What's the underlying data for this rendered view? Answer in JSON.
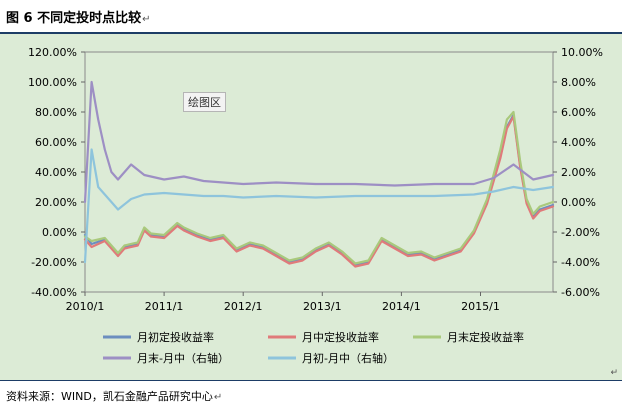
{
  "figure": {
    "title": "图 6 不同定投时点比较",
    "source": "资料来源：WIND，凯石金融产品研究中心",
    "plot_area_tag": "绘图区",
    "paragraph_mark": "↵"
  },
  "colors": {
    "bg": "#dcebd6",
    "early": "#6c8ebf",
    "mid": "#e07a7a",
    "late": "#a9c97c",
    "endMinusMid": "#9d8fc4",
    "startMinusMid": "#8ec4dc"
  },
  "chart_data": {
    "type": "line",
    "title": "",
    "xlabel": "",
    "ylabel": "",
    "x_ticks": [
      "2010/1",
      "2011/1",
      "2012/1",
      "2013/1",
      "2014/1",
      "2015/1"
    ],
    "left_axis": {
      "ylim": [
        -40,
        120
      ],
      "ticks": [
        "120.00%",
        "100.00%",
        "80.00%",
        "60.00%",
        "40.00%",
        "20.00%",
        "0.00%",
        "-20.00%",
        "-40.00%"
      ]
    },
    "right_axis": {
      "ylim": [
        -6,
        10
      ],
      "ticks": [
        "10.00%",
        "8.00%",
        "6.00%",
        "4.00%",
        "2.00%",
        "0.00%",
        "-2.00%",
        "-4.00%",
        "-6.00%"
      ]
    },
    "legend_position": "bottom",
    "legend": [
      "月初定投收益率",
      "月中定投收益率",
      "月末定投收益率",
      "月末-月中（右轴）",
      "月初-月中（右轴）"
    ],
    "x_range": [
      "2010-01",
      "2015-12"
    ],
    "series": [
      {
        "name": "月初定投收益率",
        "axis": "left",
        "color_key": "early",
        "points": [
          [
            "2010-01",
            -2
          ],
          [
            "2010-02",
            -8
          ],
          [
            "2010-04",
            -5
          ],
          [
            "2010-06",
            -15
          ],
          [
            "2010-07",
            -10
          ],
          [
            "2010-09",
            -8
          ],
          [
            "2010-10",
            2
          ],
          [
            "2010-11",
            -2
          ],
          [
            "2011-01",
            -3
          ],
          [
            "2011-03",
            5
          ],
          [
            "2011-04",
            2
          ],
          [
            "2011-06",
            -2
          ],
          [
            "2011-08",
            -5
          ],
          [
            "2011-10",
            -3
          ],
          [
            "2011-12",
            -12
          ],
          [
            "2012-02",
            -8
          ],
          [
            "2012-04",
            -10
          ],
          [
            "2012-06",
            -15
          ],
          [
            "2012-08",
            -20
          ],
          [
            "2012-10",
            -18
          ],
          [
            "2012-12",
            -12
          ],
          [
            "2013-02",
            -8
          ],
          [
            "2013-04",
            -14
          ],
          [
            "2013-06",
            -22
          ],
          [
            "2013-08",
            -20
          ],
          [
            "2013-10",
            -5
          ],
          [
            "2013-12",
            -10
          ],
          [
            "2014-02",
            -15
          ],
          [
            "2014-04",
            -14
          ],
          [
            "2014-06",
            -18
          ],
          [
            "2014-08",
            -15
          ],
          [
            "2014-10",
            -12
          ],
          [
            "2014-12",
            0
          ],
          [
            "2015-02",
            20
          ],
          [
            "2015-04",
            50
          ],
          [
            "2015-05",
            70
          ],
          [
            "2015-06",
            78
          ],
          [
            "2015-07",
            45
          ],
          [
            "2015-08",
            20
          ],
          [
            "2015-09",
            10
          ],
          [
            "2015-10",
            15
          ],
          [
            "2015-12",
            18
          ]
        ]
      },
      {
        "name": "月中定投收益率",
        "axis": "left",
        "color_key": "mid",
        "points": [
          [
            "2010-01",
            -5
          ],
          [
            "2010-02",
            -10
          ],
          [
            "2010-04",
            -6
          ],
          [
            "2010-06",
            -16
          ],
          [
            "2010-07",
            -11
          ],
          [
            "2010-09",
            -9
          ],
          [
            "2010-10",
            1
          ],
          [
            "2010-11",
            -3
          ],
          [
            "2011-01",
            -4
          ],
          [
            "2011-03",
            4
          ],
          [
            "2011-04",
            1
          ],
          [
            "2011-06",
            -3
          ],
          [
            "2011-08",
            -6
          ],
          [
            "2011-10",
            -4
          ],
          [
            "2011-12",
            -13
          ],
          [
            "2012-02",
            -9
          ],
          [
            "2012-04",
            -11
          ],
          [
            "2012-06",
            -16
          ],
          [
            "2012-08",
            -21
          ],
          [
            "2012-10",
            -19
          ],
          [
            "2012-12",
            -13
          ],
          [
            "2013-02",
            -9
          ],
          [
            "2013-04",
            -15
          ],
          [
            "2013-06",
            -23
          ],
          [
            "2013-08",
            -21
          ],
          [
            "2013-10",
            -6
          ],
          [
            "2013-12",
            -11
          ],
          [
            "2014-02",
            -16
          ],
          [
            "2014-04",
            -15
          ],
          [
            "2014-06",
            -19
          ],
          [
            "2014-08",
            -16
          ],
          [
            "2014-10",
            -13
          ],
          [
            "2014-12",
            -1
          ],
          [
            "2015-02",
            19
          ],
          [
            "2015-04",
            49
          ],
          [
            "2015-05",
            69
          ],
          [
            "2015-06",
            77
          ],
          [
            "2015-07",
            44
          ],
          [
            "2015-08",
            19
          ],
          [
            "2015-09",
            9
          ],
          [
            "2015-10",
            14
          ],
          [
            "2015-12",
            17
          ]
        ]
      },
      {
        "name": "月末定投收益率",
        "axis": "left",
        "color_key": "late",
        "points": [
          [
            "2010-01",
            -3
          ],
          [
            "2010-02",
            -6
          ],
          [
            "2010-04",
            -4
          ],
          [
            "2010-06",
            -14
          ],
          [
            "2010-07",
            -9
          ],
          [
            "2010-09",
            -7
          ],
          [
            "2010-10",
            3
          ],
          [
            "2010-11",
            -1
          ],
          [
            "2011-01",
            -2
          ],
          [
            "2011-03",
            6
          ],
          [
            "2011-04",
            3
          ],
          [
            "2011-06",
            -1
          ],
          [
            "2011-08",
            -4
          ],
          [
            "2011-10",
            -2
          ],
          [
            "2011-12",
            -11
          ],
          [
            "2012-02",
            -7
          ],
          [
            "2012-04",
            -9
          ],
          [
            "2012-06",
            -14
          ],
          [
            "2012-08",
            -19
          ],
          [
            "2012-10",
            -17
          ],
          [
            "2012-12",
            -11
          ],
          [
            "2013-02",
            -7
          ],
          [
            "2013-04",
            -13
          ],
          [
            "2013-06",
            -21
          ],
          [
            "2013-08",
            -19
          ],
          [
            "2013-10",
            -4
          ],
          [
            "2013-12",
            -9
          ],
          [
            "2014-02",
            -14
          ],
          [
            "2014-04",
            -13
          ],
          [
            "2014-06",
            -17
          ],
          [
            "2014-08",
            -14
          ],
          [
            "2014-10",
            -11
          ],
          [
            "2014-12",
            1
          ],
          [
            "2015-02",
            22
          ],
          [
            "2015-04",
            55
          ],
          [
            "2015-05",
            75
          ],
          [
            "2015-06",
            80
          ],
          [
            "2015-07",
            48
          ],
          [
            "2015-08",
            22
          ],
          [
            "2015-09",
            12
          ],
          [
            "2015-10",
            17
          ],
          [
            "2015-12",
            20
          ]
        ]
      },
      {
        "name": "月末-月中（右轴）",
        "axis": "right",
        "color_key": "endMinusMid",
        "points": [
          [
            "2010-01",
            0.0
          ],
          [
            "2010-02",
            8.0
          ],
          [
            "2010-03",
            5.5
          ],
          [
            "2010-04",
            3.5
          ],
          [
            "2010-05",
            2.0
          ],
          [
            "2010-06",
            1.5
          ],
          [
            "2010-08",
            2.5
          ],
          [
            "2010-10",
            1.8
          ],
          [
            "2011-01",
            1.5
          ],
          [
            "2011-04",
            1.7
          ],
          [
            "2011-07",
            1.4
          ],
          [
            "2011-10",
            1.3
          ],
          [
            "2012-01",
            1.2
          ],
          [
            "2012-06",
            1.3
          ],
          [
            "2012-12",
            1.2
          ],
          [
            "2013-06",
            1.2
          ],
          [
            "2013-12",
            1.1
          ],
          [
            "2014-06",
            1.2
          ],
          [
            "2014-12",
            1.2
          ],
          [
            "2015-03",
            1.6
          ],
          [
            "2015-06",
            2.5
          ],
          [
            "2015-09",
            1.5
          ],
          [
            "2015-12",
            1.8
          ]
        ]
      },
      {
        "name": "月初-月中（右轴）",
        "axis": "right",
        "color_key": "startMinusMid",
        "points": [
          [
            "2010-01",
            -4.0
          ],
          [
            "2010-02",
            3.5
          ],
          [
            "2010-03",
            1.0
          ],
          [
            "2010-04",
            0.5
          ],
          [
            "2010-05",
            0.0
          ],
          [
            "2010-06",
            -0.5
          ],
          [
            "2010-08",
            0.2
          ],
          [
            "2010-10",
            0.5
          ],
          [
            "2011-01",
            0.6
          ],
          [
            "2011-04",
            0.5
          ],
          [
            "2011-07",
            0.4
          ],
          [
            "2011-10",
            0.4
          ],
          [
            "2012-01",
            0.3
          ],
          [
            "2012-06",
            0.4
          ],
          [
            "2012-12",
            0.3
          ],
          [
            "2013-06",
            0.4
          ],
          [
            "2013-12",
            0.4
          ],
          [
            "2014-06",
            0.4
          ],
          [
            "2014-12",
            0.5
          ],
          [
            "2015-03",
            0.7
          ],
          [
            "2015-06",
            1.0
          ],
          [
            "2015-09",
            0.8
          ],
          [
            "2015-12",
            1.0
          ]
        ]
      }
    ]
  }
}
